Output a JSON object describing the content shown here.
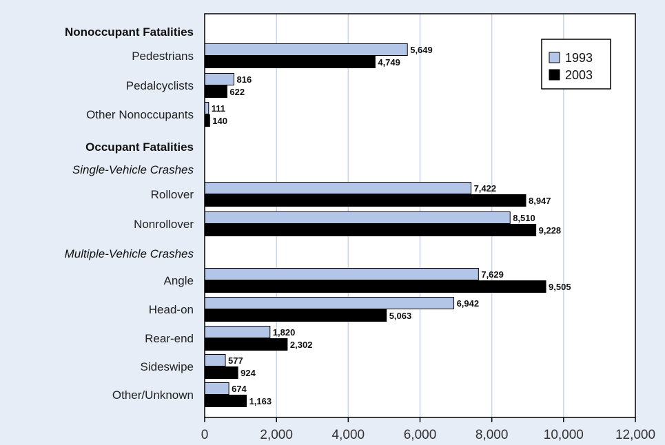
{
  "chart_data": {
    "type": "bar",
    "orientation": "horizontal",
    "title": "",
    "xlabel": "",
    "ylabel": "",
    "xlim": [
      0,
      12000
    ],
    "xticks": [
      0,
      2000,
      4000,
      6000,
      8000,
      10000,
      12000
    ],
    "xtick_labels": [
      "0",
      "2,000",
      "4,000",
      "6,000",
      "8,000",
      "10,000",
      "12,000"
    ],
    "grid": true,
    "legend_position": "top-right",
    "series": [
      {
        "name": "1993",
        "color": "#b3c6e7"
      },
      {
        "name": "2003",
        "color": "#000000"
      }
    ],
    "groups": [
      {
        "heading": "Nonoccupant Fatalities",
        "heading_style": "bold",
        "categories": [
          {
            "label": "Pedestrians",
            "values": [
              5649,
              4749
            ],
            "value_labels": [
              "5,649",
              "4,749"
            ]
          },
          {
            "label": "Pedalcyclists",
            "values": [
              816,
              622
            ],
            "value_labels": [
              "816",
              "622"
            ]
          },
          {
            "label": "Other Nonoccupants",
            "values": [
              111,
              140
            ],
            "value_labels": [
              "111",
              "140"
            ]
          }
        ]
      },
      {
        "heading": "Occupant Fatalities",
        "heading_style": "bold",
        "categories": []
      },
      {
        "heading": "Single-Vehicle Crashes",
        "heading_style": "italic",
        "categories": [
          {
            "label": "Rollover",
            "values": [
              7422,
              8947
            ],
            "value_labels": [
              "7,422",
              "8,947"
            ]
          },
          {
            "label": "Nonrollover",
            "values": [
              8510,
              9228
            ],
            "value_labels": [
              "8,510",
              "9,228"
            ]
          }
        ]
      },
      {
        "heading": "Multiple-Vehicle Crashes",
        "heading_style": "italic",
        "categories": [
          {
            "label": "Angle",
            "values": [
              7629,
              9505
            ],
            "value_labels": [
              "7,629",
              "9,505"
            ]
          },
          {
            "label": "Head-on",
            "values": [
              6942,
              5063
            ],
            "value_labels": [
              "6,942",
              "5,063"
            ]
          },
          {
            "label": "Rear-end",
            "values": [
              1820,
              2302
            ],
            "value_labels": [
              "1,820",
              "2,302"
            ]
          },
          {
            "label": "Sideswipe",
            "values": [
              577,
              924
            ],
            "value_labels": [
              "577",
              "924"
            ]
          },
          {
            "label": "Other/Unknown",
            "values": [
              674,
              1163
            ],
            "value_labels": [
              "674",
              "1,163"
            ]
          }
        ]
      }
    ]
  },
  "colors": {
    "background": "#e6edf7",
    "plot_background": "#ffffff",
    "gridline": "#c9d6e8",
    "bar_1993": "#b3c6e7",
    "bar_2003": "#000000"
  }
}
